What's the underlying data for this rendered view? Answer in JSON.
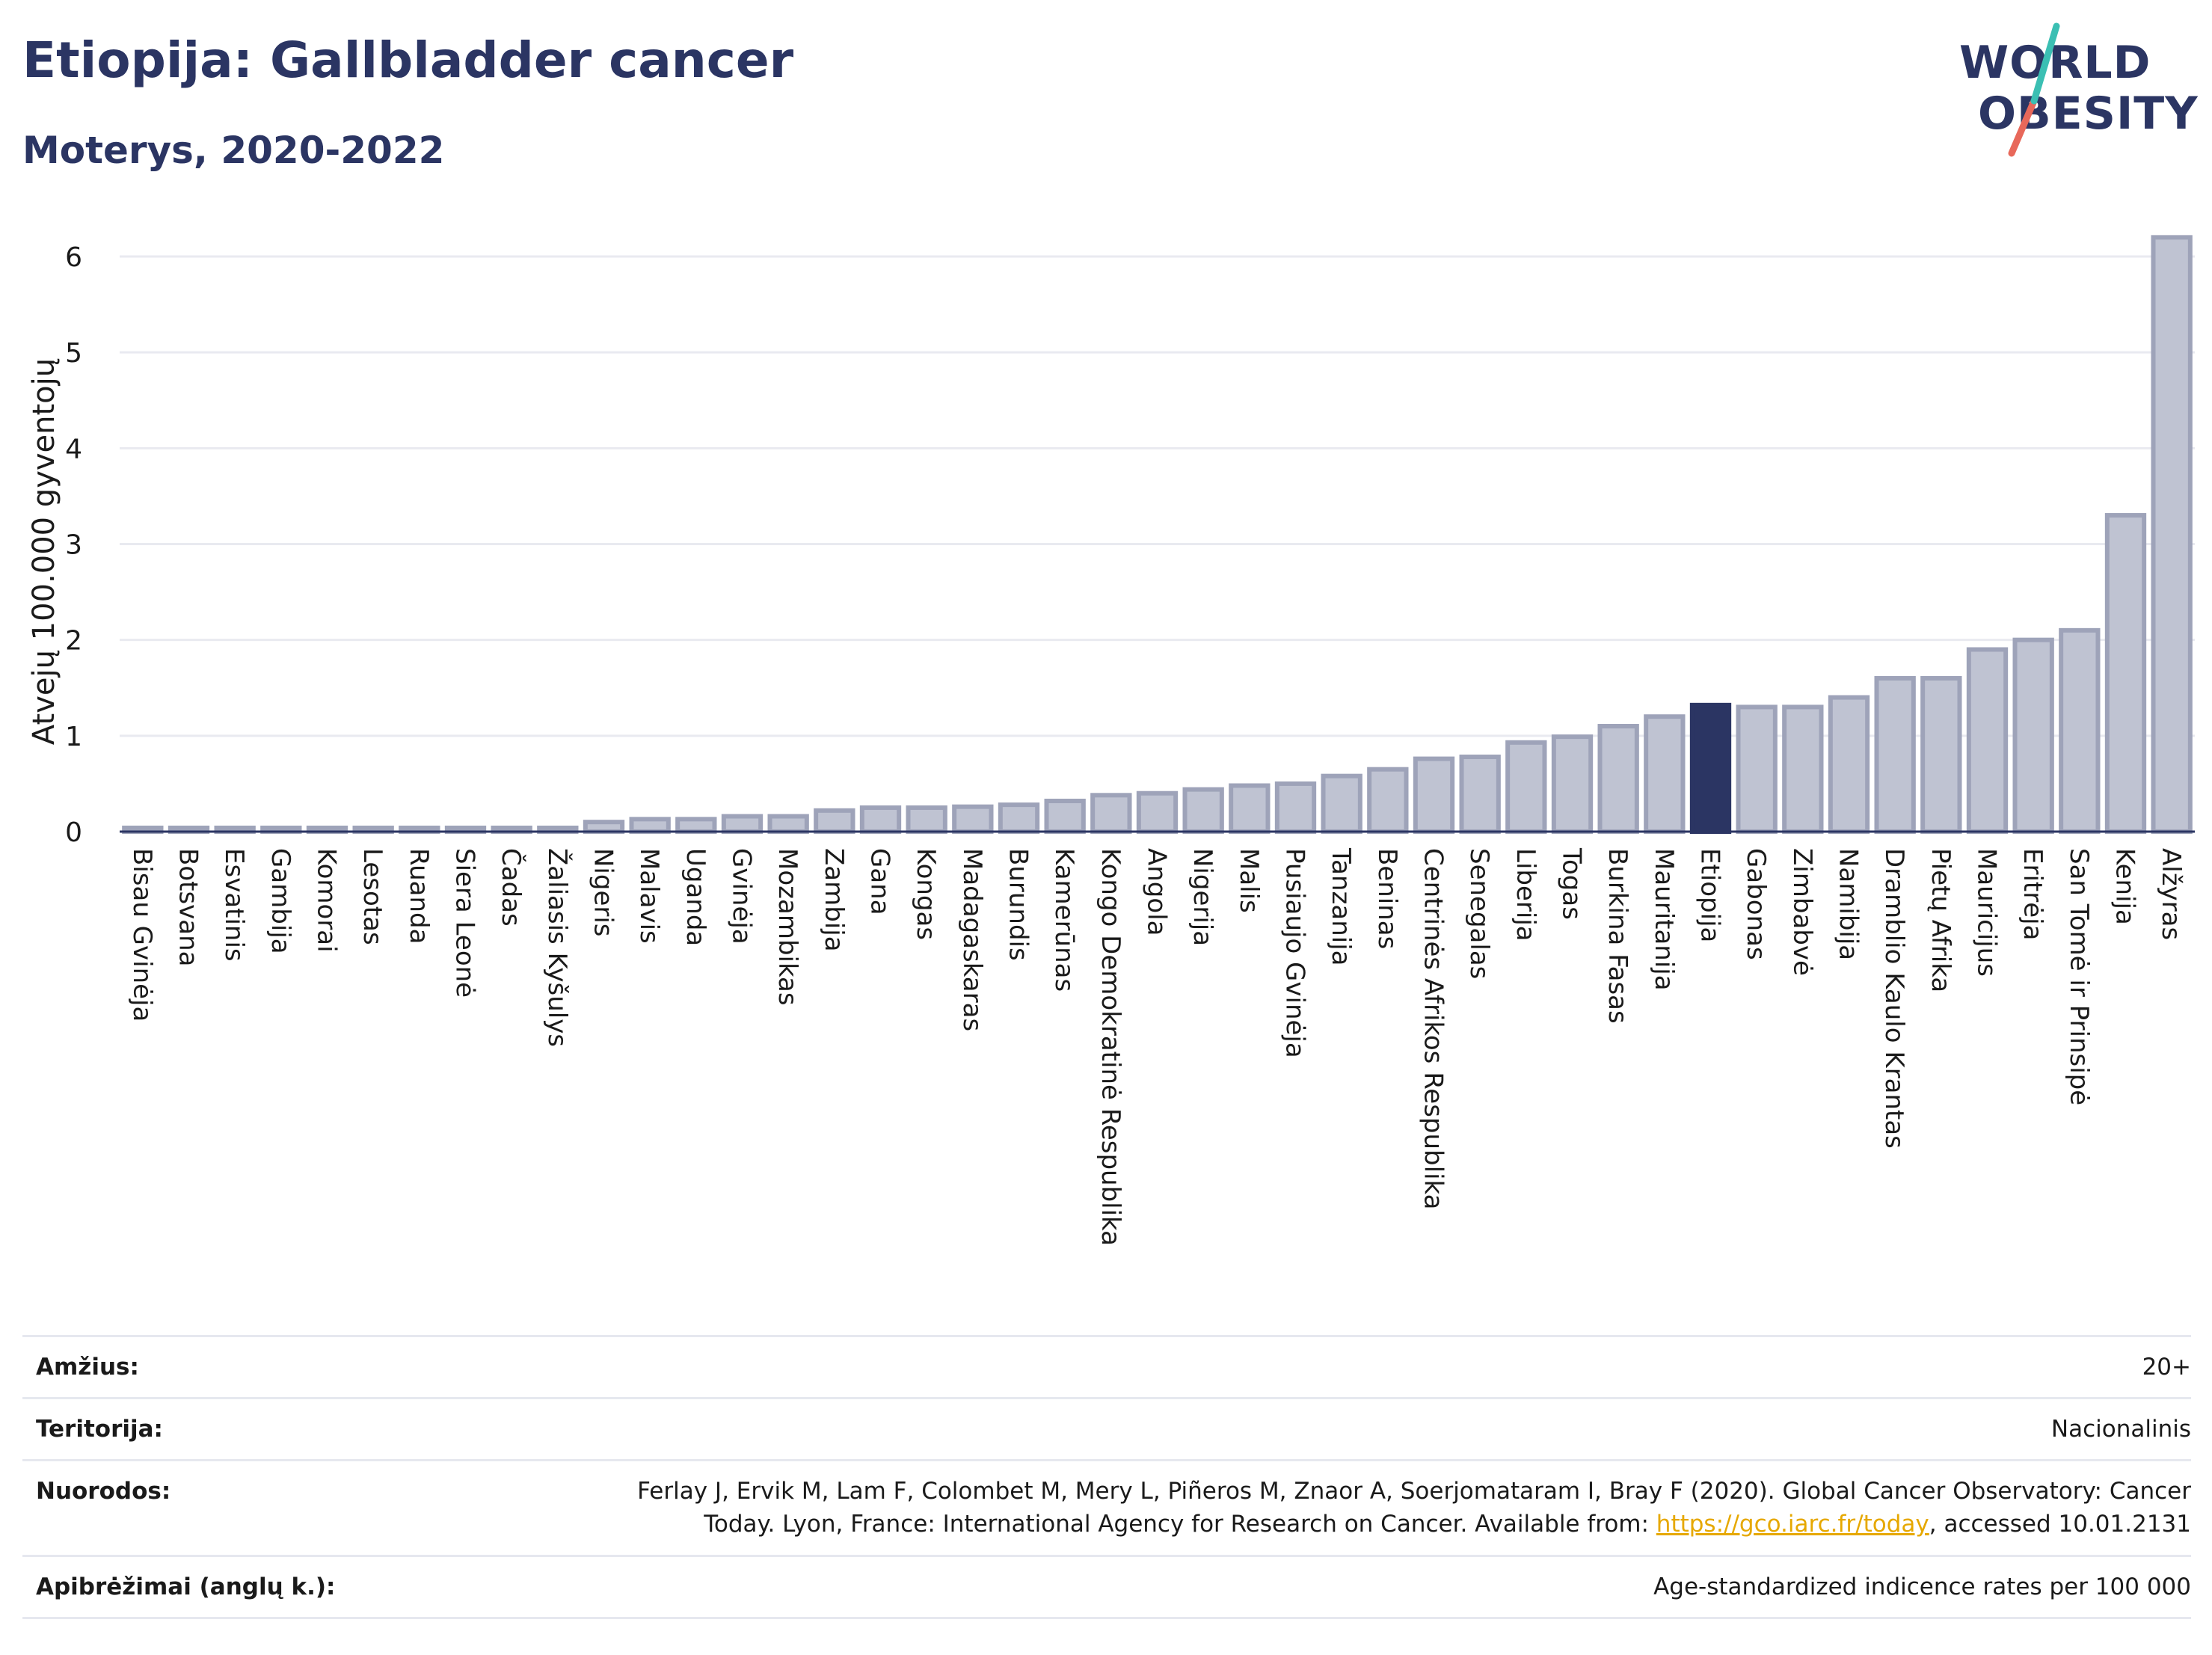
{
  "header": {
    "title": "Etiopija: Gallbladder cancer",
    "subtitle": "Moterys, 2020-2022"
  },
  "logo": {
    "line1": "WORLD",
    "line2": "OBESITY",
    "slash_color": "#e8685a",
    "accent_color": "#3bbfb3"
  },
  "chart_data": {
    "type": "bar",
    "ylabel": "Atvejų 100.000 gyventojų",
    "ylim": [
      0,
      6.5
    ],
    "yticks": [
      0,
      1,
      2,
      3,
      4,
      5,
      6
    ],
    "grid": true,
    "highlight": "Etiopija",
    "colors": {
      "bar": "#bfc3d2",
      "bar_edge": "#9ea3b9",
      "highlight": "#2b3563"
    },
    "categories": [
      "Bisau Gvinėja",
      "Botsvana",
      "Esvatinis",
      "Gambija",
      "Komorai",
      "Lesotas",
      "Ruanda",
      "Siera Leonė",
      "Čadas",
      "Žaliasis Kyšulys",
      "Nigeris",
      "Malavis",
      "Uganda",
      "Gvinėja",
      "Mozambikas",
      "Zambija",
      "Gana",
      "Kongas",
      "Madagaskaras",
      "Burundis",
      "Kamerūnas",
      "Kongo Demokratinė Respublika",
      "Angola",
      "Nigerija",
      "Malis",
      "Pusiaujo Gvinėja",
      "Tanzanija",
      "Beninas",
      "Centrinės Afrikos Respublika",
      "Senegalas",
      "Liberija",
      "Togas",
      "Burkina Fasas",
      "Mauritanija",
      "Etiopija",
      "Gabonas",
      "Zimbabvė",
      "Namibija",
      "Dramblio Kaulo Krantas",
      "Pietų Afrika",
      "Mauricijus",
      "Eritrėja",
      "San Tomė ir Prinsipė",
      "Kenija",
      "Alžyras"
    ],
    "values": [
      0.0,
      0.0,
      0.0,
      0.0,
      0.0,
      0.0,
      0.0,
      0.0,
      0.0,
      0.0,
      0.1,
      0.13,
      0.13,
      0.16,
      0.16,
      0.22,
      0.25,
      0.25,
      0.26,
      0.28,
      0.32,
      0.38,
      0.4,
      0.44,
      0.48,
      0.5,
      0.58,
      0.65,
      0.76,
      0.78,
      0.93,
      0.99,
      1.1,
      1.2,
      1.32,
      1.3,
      1.3,
      1.4,
      1.6,
      1.6,
      1.9,
      2.0,
      2.1,
      3.3,
      6.2
    ]
  },
  "info": {
    "age_label": "Amžius:",
    "age_value": "20+",
    "territory_label": "Teritorija:",
    "territory_value": "Nacionalinis",
    "refs_label": "Nuorodos:",
    "refs_line1": "Ferlay J, Ervik M, Lam F, Colombet M, Mery L, Piñeros M, Znaor A, Soerjomataram I, Bray F (2020). Global Cancer Observatory: Cancer",
    "refs_line2_pre": "Today. Lyon, France: International Agency for Research on Cancer. Available from: ",
    "refs_link": "https://gco.iarc.fr/today",
    "refs_line2_post": ", accessed 10.01.2131",
    "defs_label": "Apibrėžimai (anglų k.):",
    "defs_value": "Age-standardized indicence rates per 100 000"
  }
}
